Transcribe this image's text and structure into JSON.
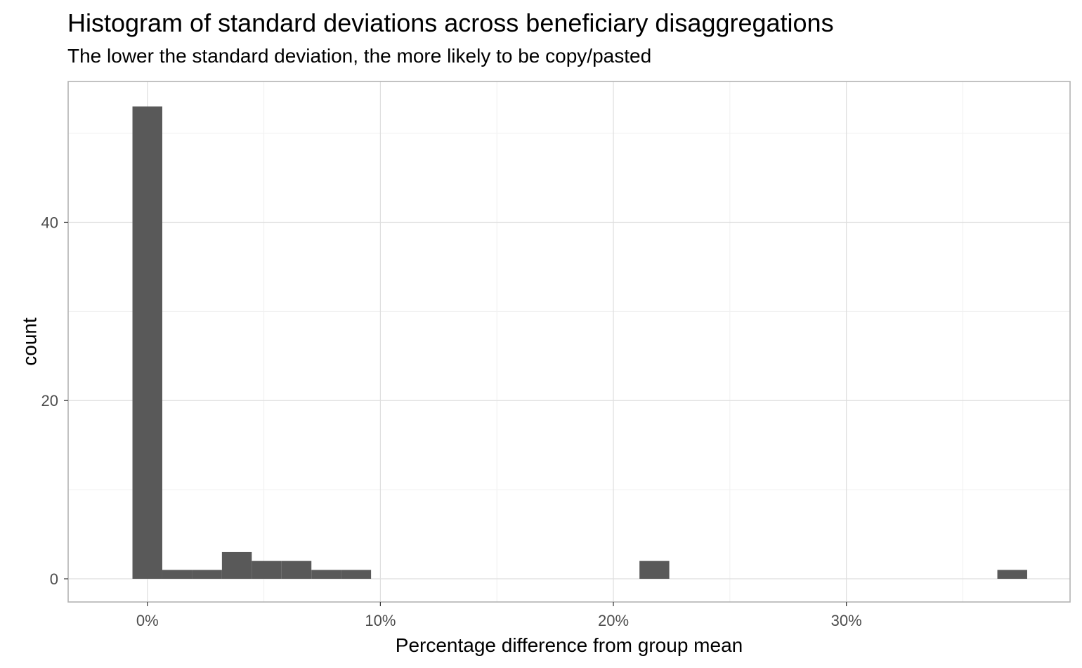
{
  "title": "Histogram of standard deviations across beneficiary disaggregations",
  "subtitle": "The lower the standard deviation, the more likely to be copy/pasted",
  "chart_data": {
    "type": "bar",
    "subtype": "histogram",
    "title": "Histogram of standard deviations across beneficiary disaggregations",
    "subtitle": "The lower the standard deviation, the more likely to be copy/pasted",
    "xlabel": "Percentage difference from group mean",
    "ylabel": "count",
    "x_unit": "percent",
    "xlim": [
      -3.4,
      39.6
    ],
    "ylim": [
      -2.6,
      55.8
    ],
    "x_ticks": [
      0,
      10,
      20,
      30
    ],
    "x_tick_labels": [
      "0%",
      "10%",
      "20%",
      "30%"
    ],
    "y_ticks": [
      0,
      20,
      40
    ],
    "y_tick_labels": [
      "0",
      "20",
      "40"
    ],
    "grid": true,
    "legend": "none",
    "bar_color": "#595959",
    "bins": [
      {
        "x0": -0.64,
        "x1": 0.64,
        "count": 53
      },
      {
        "x0": 0.64,
        "x1": 1.92,
        "count": 1
      },
      {
        "x0": 1.92,
        "x1": 3.2,
        "count": 1
      },
      {
        "x0": 3.2,
        "x1": 4.48,
        "count": 3
      },
      {
        "x0": 4.48,
        "x1": 5.76,
        "count": 2
      },
      {
        "x0": 5.76,
        "x1": 7.04,
        "count": 2
      },
      {
        "x0": 7.04,
        "x1": 8.32,
        "count": 1
      },
      {
        "x0": 8.32,
        "x1": 9.6,
        "count": 1
      },
      {
        "x0": 21.12,
        "x1": 22.4,
        "count": 2
      },
      {
        "x0": 36.48,
        "x1": 37.76,
        "count": 1
      }
    ]
  }
}
